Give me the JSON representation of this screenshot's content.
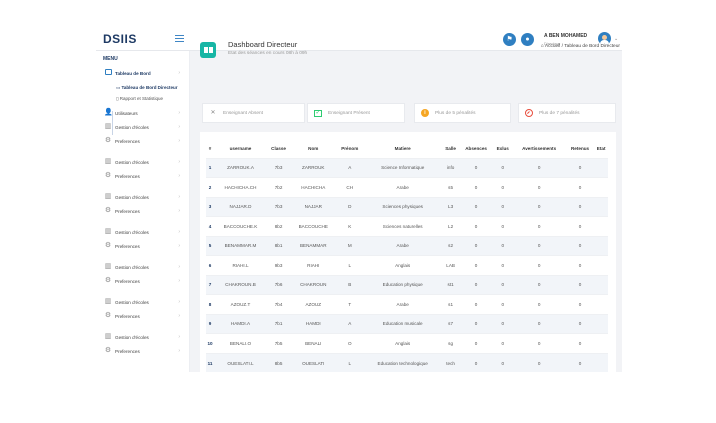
{
  "logo": "DSIIS",
  "user": {
    "name": "A BEN MOHAMED",
    "role": "Directeur"
  },
  "sidebar": {
    "menu_title": "MENU",
    "items": [
      {
        "label": "Tableau de Bord",
        "icon": "dashboard-icon"
      },
      {
        "label": "Tableau de Bord Directeur",
        "icon": "table-icon"
      },
      {
        "label": "Rapport et Statistique",
        "icon": "chart-icon"
      },
      {
        "label": "Utilisateurs",
        "icon": "users-icon"
      },
      {
        "label": "Gestion d'écoles",
        "icon": "school-icon"
      },
      {
        "label": "Preferences",
        "icon": "gear-icon"
      },
      {
        "label": "Gestion d'écoles",
        "icon": "school-icon"
      },
      {
        "label": "Preferences",
        "icon": "gear-icon"
      },
      {
        "label": "Gestion d'écoles",
        "icon": "school-icon"
      },
      {
        "label": "Preferences",
        "icon": "gear-icon"
      },
      {
        "label": "Gestion d'écoles",
        "icon": "school-icon"
      },
      {
        "label": "Preferences",
        "icon": "gear-icon"
      },
      {
        "label": "Gestion d'écoles",
        "icon": "school-icon"
      },
      {
        "label": "Preferences",
        "icon": "gear-icon"
      },
      {
        "label": "Gestion d'écoles",
        "icon": "school-icon"
      },
      {
        "label": "Preferences",
        "icon": "gear-icon"
      },
      {
        "label": "Gestion d'écoles",
        "icon": "school-icon"
      },
      {
        "label": "Preferences",
        "icon": "gear-icon"
      }
    ]
  },
  "page": {
    "title": "Dashboard Directeur",
    "subtitle": "Etat des séances en cours 08h à 09h",
    "breadcrumb_home": "Accueil",
    "breadcrumb_current": "Tableau de Bord Directeur"
  },
  "stats": [
    {
      "label": "Enseignant Absent",
      "icon": "close-icon"
    },
    {
      "label": "Enseignant Présent",
      "icon": "check-icon"
    },
    {
      "label": "Plus de 5 pénalités",
      "icon": "info-icon"
    },
    {
      "label": "Plus de 7 pénalités",
      "icon": "ban-icon"
    }
  ],
  "table": {
    "headers": [
      "#",
      "username",
      "Classe",
      "Nom",
      "Prénom",
      "Matiere",
      "Salle",
      "Absences",
      "Exlus",
      "Avertissements",
      "Retenus",
      "Etat"
    ],
    "rows": [
      [
        "1",
        "ZARROUK.A",
        "7b3",
        "ZARROUK",
        "A",
        "Science Informatique",
        "info",
        "0",
        "0",
        "0",
        "0",
        ""
      ],
      [
        "2",
        "HACHICHA.CH",
        "7b2",
        "HACHICHA",
        "CH",
        "Arabe",
        "s5",
        "0",
        "0",
        "0",
        "0",
        ""
      ],
      [
        "3",
        "NAJJAR.D",
        "7b3",
        "NAJJAR",
        "D",
        "Sciences physiques",
        "L3",
        "0",
        "0",
        "0",
        "0",
        ""
      ],
      [
        "4",
        "BACCOUCHE.K",
        "8b2",
        "BACCOUCHE",
        "K",
        "Sciences naturelles",
        "L2",
        "0",
        "0",
        "0",
        "0",
        ""
      ],
      [
        "5",
        "BENAMMAR.M",
        "8b1",
        "BENAMMAR",
        "M",
        "Arabe",
        "s2",
        "0",
        "0",
        "0",
        "0",
        ""
      ],
      [
        "6",
        "RIAHI.L",
        "9b3",
        "RIAHI",
        "L",
        "Anglais",
        "LAB",
        "0",
        "0",
        "0",
        "0",
        ""
      ],
      [
        "7",
        "CHAKROUN.B",
        "7b6",
        "CHAKROUN",
        "B",
        "Education physique",
        "st1",
        "0",
        "0",
        "0",
        "0",
        ""
      ],
      [
        "8",
        "AZOUZ.T",
        "7b4",
        "AZOUZ",
        "T",
        "Arabe",
        "s1",
        "0",
        "0",
        "0",
        "0",
        ""
      ],
      [
        "9",
        "HAMDI.A",
        "7b1",
        "HAMDI",
        "A",
        "Education musicale",
        "s7",
        "0",
        "0",
        "0",
        "0",
        ""
      ],
      [
        "10",
        "BENALI.O",
        "7b5",
        "BENALI",
        "O",
        "Anglais",
        "sg",
        "0",
        "0",
        "0",
        "0",
        ""
      ],
      [
        "11",
        "OUESLATI.L",
        "8b5",
        "OUESLATI",
        "L",
        "Education technologique",
        "tech",
        "0",
        "0",
        "0",
        "0",
        ""
      ]
    ]
  }
}
